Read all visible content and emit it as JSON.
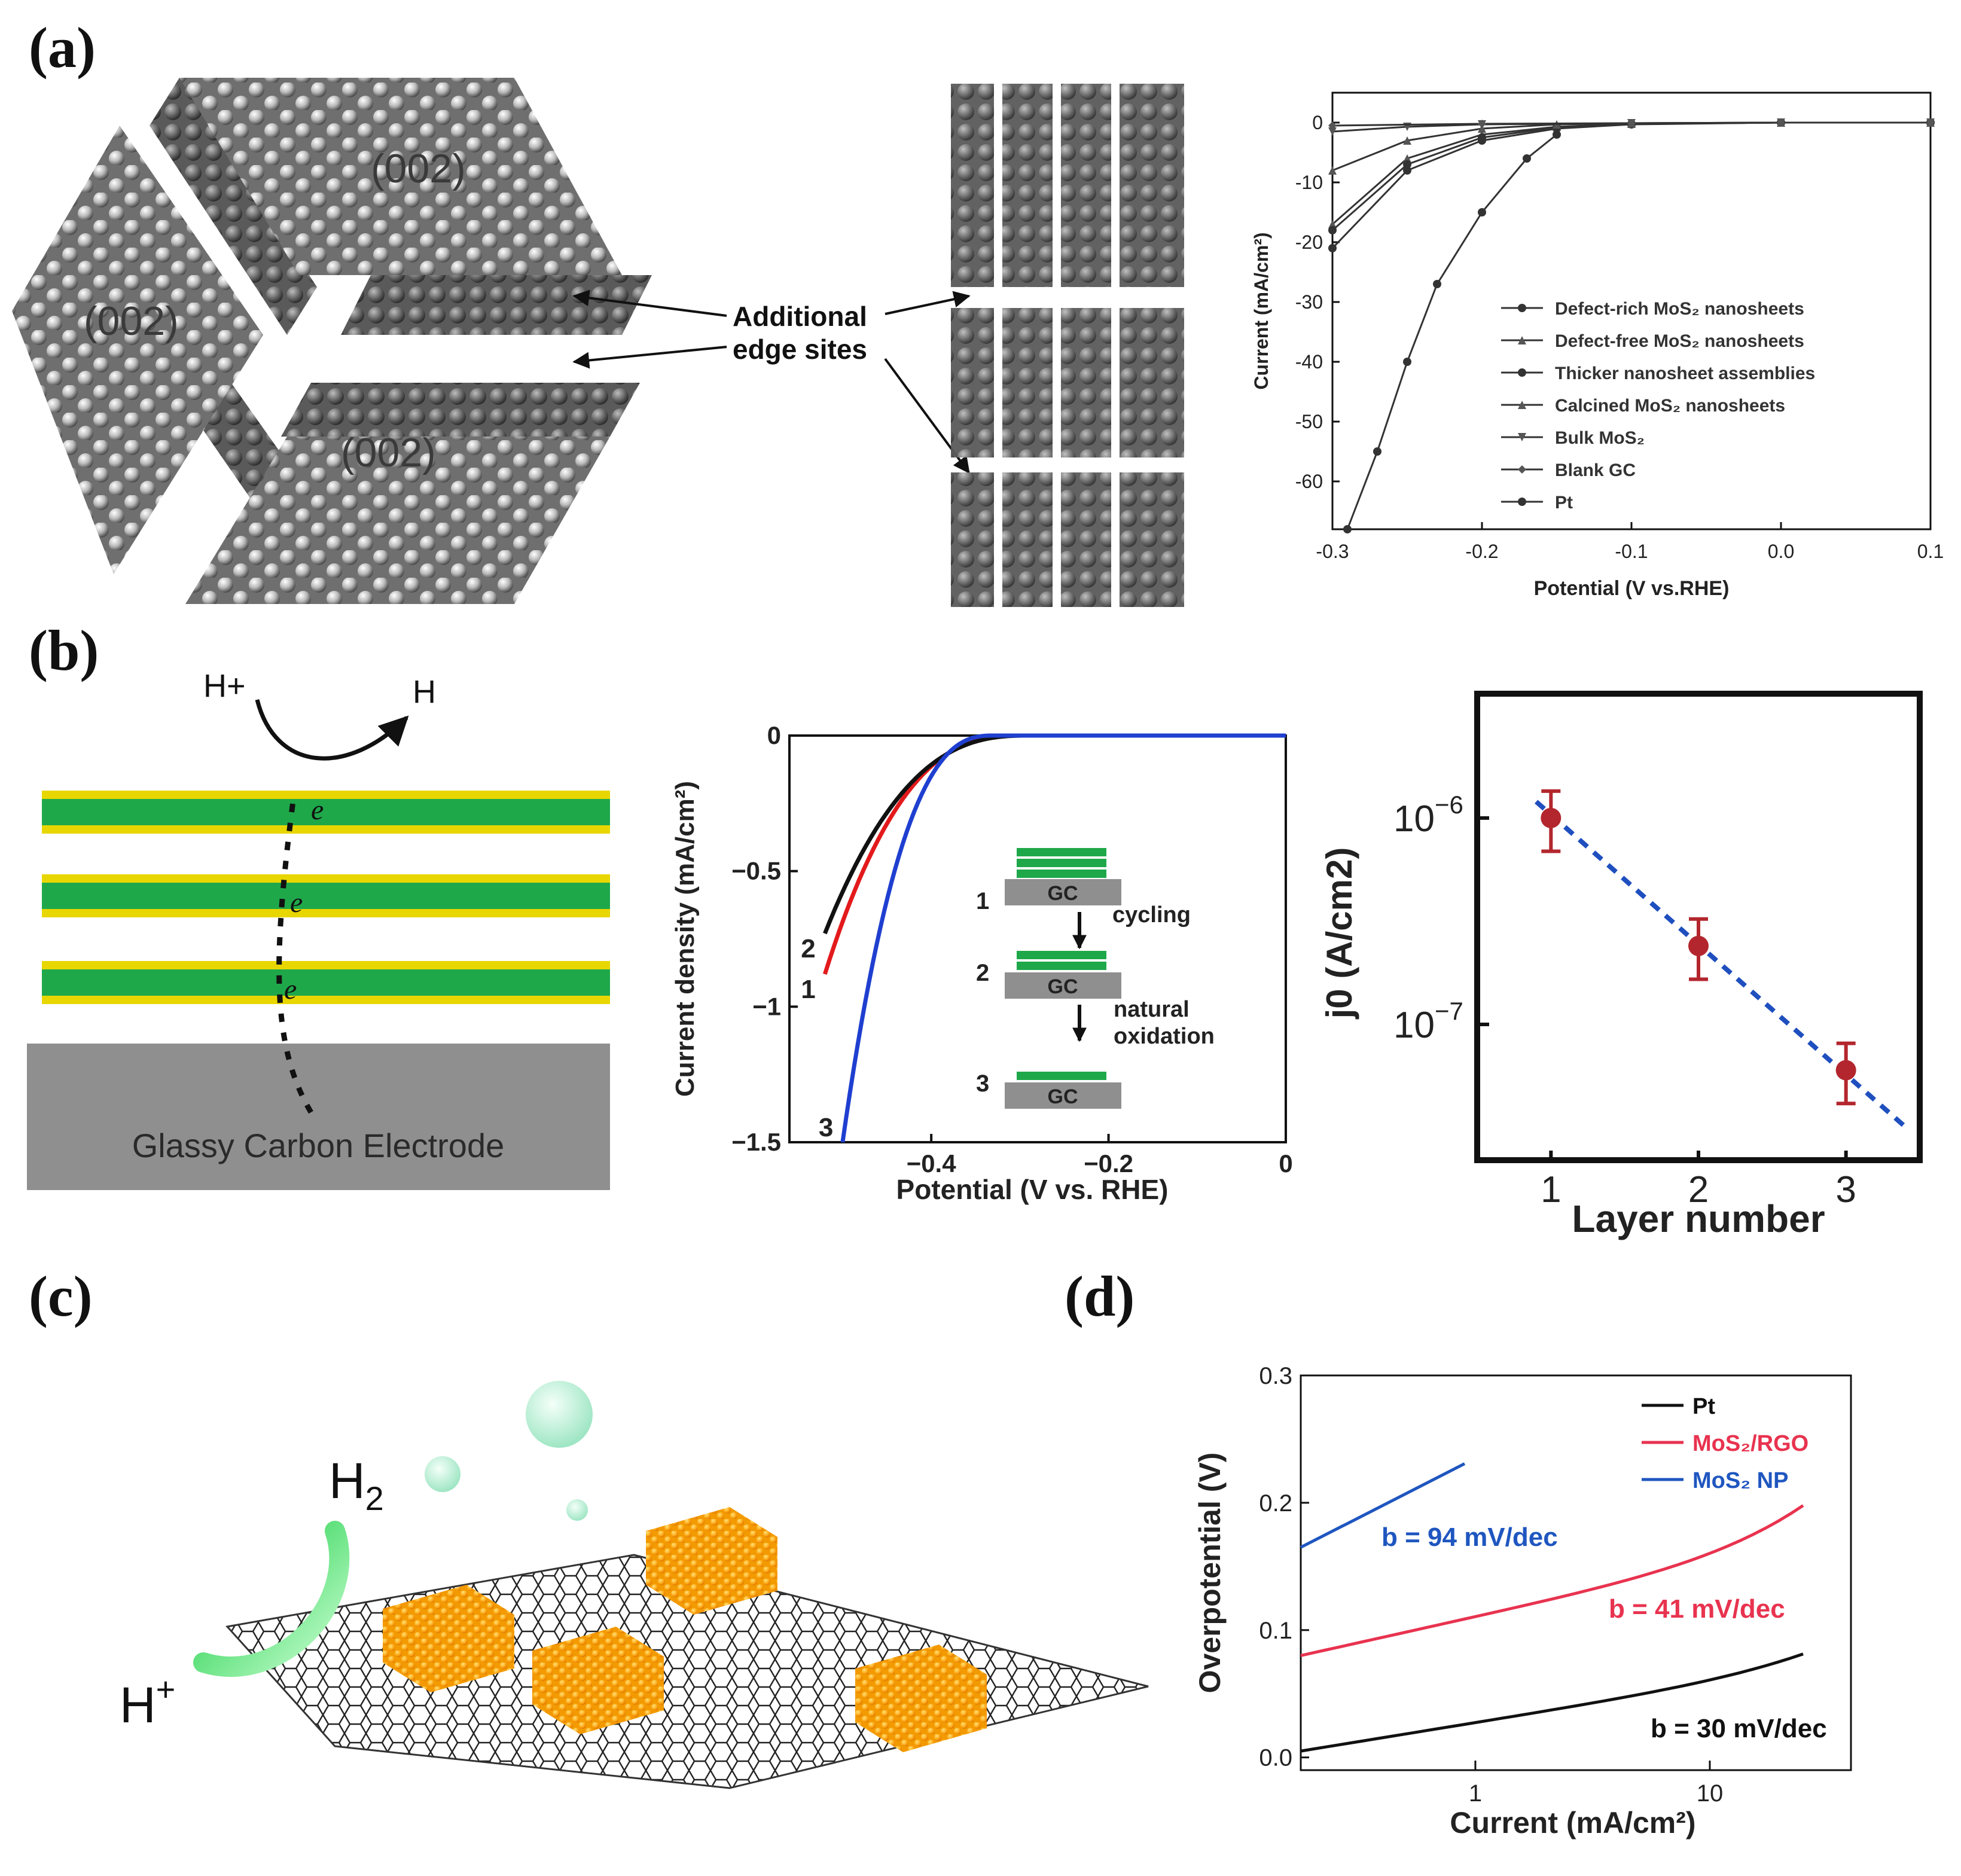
{
  "panels": {
    "a": {
      "label": "(a)",
      "facets": [
        "(002)",
        "(002)",
        "(002)"
      ],
      "annotation_line1": "Additional",
      "annotation_line2": "edge sites",
      "chart": {
        "type": "line",
        "xlabel": "Potential (V vs.RHE)",
        "ylabel": "Current (mA/cm²)",
        "xlim": [
          -0.3,
          0.1
        ],
        "ylim": [
          -68,
          5
        ],
        "xticks": [
          "-0.3",
          "-0.2",
          "-0.1",
          "0.0",
          "0.1"
        ],
        "yticks": [
          "0",
          "-10",
          "-20",
          "-30",
          "-40",
          "-50",
          "-60"
        ],
        "legend_position": "bottom-right",
        "series": [
          {
            "name": "Defect-rich MoS₂ nanosheets",
            "marker": "circle",
            "x": [
              -0.3,
              -0.25,
              -0.2,
              -0.15,
              -0.1,
              0.0,
              0.1
            ],
            "y": [
              -21,
              -8,
              -3,
              -1,
              -0.3,
              0,
              0
            ]
          },
          {
            "name": "Defect-free MoS₂ nanosheets",
            "marker": "triangle",
            "x": [
              -0.3,
              -0.25,
              -0.2,
              -0.15,
              -0.1,
              0.0,
              0.1
            ],
            "y": [
              -17,
              -6,
              -2,
              -0.7,
              -0.2,
              0,
              0
            ]
          },
          {
            "name": "Thicker nanosheet assemblies",
            "marker": "circle",
            "x": [
              -0.3,
              -0.25,
              -0.2,
              -0.15,
              -0.1,
              0.0,
              0.1
            ],
            "y": [
              -18,
              -7,
              -2.5,
              -0.8,
              -0.2,
              0,
              0
            ]
          },
          {
            "name": "Calcined MoS₂ nanosheets",
            "marker": "triangle",
            "x": [
              -0.3,
              -0.25,
              -0.2,
              -0.15,
              -0.1,
              0.0,
              0.1
            ],
            "y": [
              -8,
              -3,
              -1,
              -0.3,
              -0.1,
              0,
              0
            ]
          },
          {
            "name": "Bulk MoS₂",
            "marker": "triangle-down",
            "x": [
              -0.3,
              -0.25,
              -0.2,
              -0.1,
              0.0,
              0.1
            ],
            "y": [
              -1.5,
              -0.7,
              -0.3,
              -0.1,
              0,
              0
            ]
          },
          {
            "name": "Blank GC",
            "marker": "diamond",
            "x": [
              -0.3,
              -0.2,
              -0.1,
              0.0,
              0.1
            ],
            "y": [
              -0.5,
              -0.2,
              -0.1,
              0,
              0
            ]
          },
          {
            "name": "Pt",
            "marker": "circle",
            "x": [
              -0.29,
              -0.27,
              -0.25,
              -0.23,
              -0.2,
              -0.17,
              -0.15
            ],
            "y": [
              -68,
              -55,
              -40,
              -27,
              -15,
              -6,
              -2
            ]
          }
        ]
      }
    },
    "b": {
      "label": "(b)",
      "h_plus": "H+",
      "h": "H",
      "electron": "e",
      "electrode_label": "Glassy Carbon Electrode",
      "lsv": {
        "type": "line",
        "xlabel": "Potential (V vs. RHE)",
        "ylabel": "Current density (mA/cm²)",
        "xlim": [
          -0.56,
          0
        ],
        "ylim": [
          -1.5,
          0
        ],
        "xticks": [
          "−0.4",
          "−0.2",
          "0"
        ],
        "yticks": [
          "0",
          "−0.5",
          "−1",
          "−1.5"
        ],
        "curve_labels": [
          "1",
          "2",
          "3"
        ],
        "series": [
          {
            "name": "1",
            "color": "#e31a1c",
            "onset": -0.3,
            "x_end": -0.52,
            "y_end": -0.88
          },
          {
            "name": "2",
            "color": "#111111",
            "onset": -0.29,
            "x_end": -0.52,
            "y_end": -0.73
          },
          {
            "name": "3",
            "color": "#1f3fd0",
            "onset": -0.33,
            "x_end": -0.5,
            "y_end": -1.5
          }
        ]
      },
      "inset": {
        "steps": [
          "1",
          "2",
          "3"
        ],
        "substrate": "GC",
        "arrow1": "cycling",
        "arrow2_line1": "natural",
        "arrow2_line2": "oxidation"
      },
      "layer_chart": {
        "type": "scatter",
        "xlabel": "Layer number",
        "ylabel": "j0 (A/cm2)",
        "xticks": [
          "1",
          "2",
          "3"
        ],
        "ytick_base": "10",
        "ytick_exponents": [
          "−6",
          "−7"
        ],
        "yscale": "log",
        "x": [
          1,
          2,
          3
        ],
        "y": [
          1e-06,
          2.4e-07,
          6e-08
        ],
        "fit_color": "#1f4fbf",
        "point_color": "#b3262d"
      }
    },
    "c": {
      "label": "(c)",
      "h2_text": "H",
      "h2_sub": "2",
      "hplus_text": "H",
      "hplus_sup": "+"
    },
    "d": {
      "label": "(d)",
      "chart": {
        "type": "line",
        "xlabel": "Current (mA/cm²)",
        "ylabel": "Overpotential (V)",
        "xscale": "log",
        "ylim": [
          -0.01,
          0.3
        ],
        "xticks": [
          "1",
          "10"
        ],
        "yticks": [
          "0.0",
          "0.1",
          "0.2",
          "0.3"
        ],
        "legend_position": "top-right",
        "series": [
          {
            "name": "Pt",
            "color": "#111111",
            "slope_label": "b = 30 mV/dec"
          },
          {
            "name": "MoS₂/RGO",
            "color": "#e8334f",
            "slope_label": "b = 41 mV/dec"
          },
          {
            "name": "MoS₂ NP",
            "color": "#1f56c0",
            "slope_label": "b = 94 mV/dec"
          }
        ]
      }
    }
  }
}
